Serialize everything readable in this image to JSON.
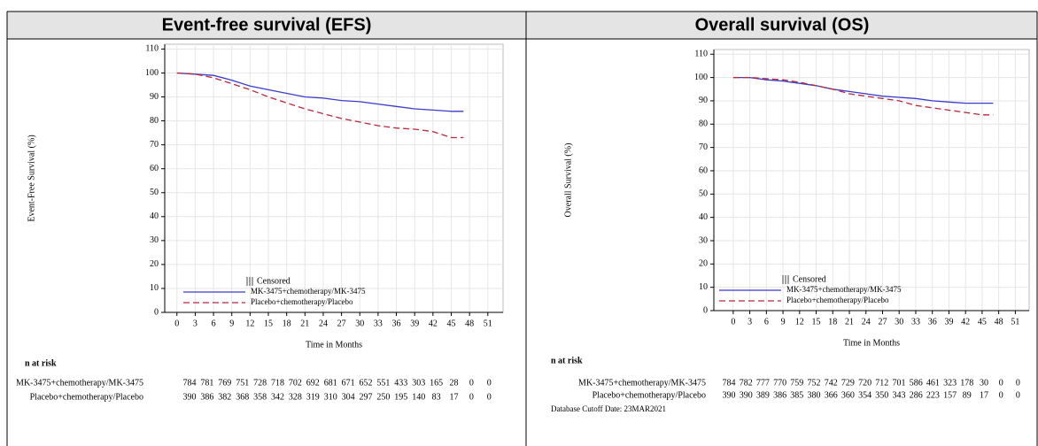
{
  "table": {
    "headers": [
      "Event-free survival (EFS)",
      "Overall survival (OS)"
    ]
  },
  "chart_data": [
    {
      "type": "line",
      "y_label": "Event-Free Survival (%)",
      "x_label": "Time in Months",
      "x": [
        0,
        3,
        6,
        9,
        12,
        15,
        18,
        21,
        24,
        27,
        30,
        33,
        36,
        39,
        42,
        45,
        47
      ],
      "series": [
        {
          "name": "MK-3475+chemotherapy/MK-3475",
          "color": "#3a3acc",
          "line_style": "solid",
          "values": [
            100,
            99.5,
            99,
            97,
            94.5,
            93,
            91.5,
            90,
            89.5,
            88.5,
            88,
            87,
            86,
            85,
            84.5,
            84,
            84
          ]
        },
        {
          "name": "Placebo+chemotherapy/Placebo",
          "color": "#b8283a",
          "line_style": "dashed",
          "values": [
            100,
            99.5,
            98,
            95.5,
            93,
            90,
            87.5,
            85,
            83,
            81,
            79.5,
            78,
            77,
            76.5,
            75.5,
            73,
            73
          ]
        }
      ],
      "censored_label": "Censored",
      "xlim": [
        -2,
        53.5
      ],
      "xticks": [
        0,
        3,
        6,
        9,
        12,
        15,
        18,
        21,
        24,
        27,
        30,
        33,
        36,
        39,
        42,
        45,
        48,
        51
      ],
      "ylim": [
        0,
        112
      ],
      "yticks": [
        0,
        10,
        20,
        30,
        40,
        50,
        60,
        70,
        80,
        90,
        100,
        110
      ],
      "grid": true,
      "n_at_risk": {
        "title": "n at risk",
        "rows": [
          {
            "label": "MK-3475+chemotherapy/MK-3475",
            "values": [
              784,
              781,
              769,
              751,
              728,
              718,
              702,
              692,
              681,
              671,
              652,
              551,
              433,
              303,
              165,
              28,
              0,
              0
            ]
          },
          {
            "label": "Placebo+chemotherapy/Placebo",
            "values": [
              390,
              386,
              382,
              368,
              358,
              342,
              328,
              319,
              310,
              304,
              297,
              250,
              195,
              140,
              83,
              17,
              0,
              0
            ]
          }
        ]
      }
    },
    {
      "type": "line",
      "y_label": "Overall Survival (%)",
      "x_label": "Time in Months",
      "x": [
        0,
        3,
        6,
        9,
        12,
        15,
        18,
        21,
        24,
        27,
        30,
        33,
        36,
        39,
        42,
        45,
        47
      ],
      "series": [
        {
          "name": "MK-3475+chemotherapy/MK-3475",
          "color": "#3a3acc",
          "line_style": "solid",
          "values": [
            100,
            100,
            99,
            98.5,
            97.5,
            96.5,
            95,
            94,
            93,
            92,
            91.5,
            91,
            90,
            89.5,
            89,
            89,
            89
          ]
        },
        {
          "name": "Placebo+chemotherapy/Placebo",
          "color": "#b8283a",
          "line_style": "dashed",
          "values": [
            100,
            100,
            99.5,
            99,
            98,
            96.5,
            95,
            93,
            92,
            91,
            90,
            88,
            87,
            86,
            85,
            84,
            84
          ]
        }
      ],
      "censored_label": "Censored",
      "xlim": [
        -3.5,
        53.5
      ],
      "xticks": [
        0,
        3,
        6,
        9,
        12,
        15,
        18,
        21,
        24,
        27,
        30,
        33,
        36,
        39,
        42,
        45,
        48,
        51
      ],
      "ylim": [
        0,
        112
      ],
      "yticks": [
        0,
        10,
        20,
        30,
        40,
        50,
        60,
        70,
        80,
        90,
        100,
        110
      ],
      "grid": true,
      "n_at_risk": {
        "title": "n at risk",
        "rows": [
          {
            "label": "MK-3475+chemotherapy/MK-3475",
            "values": [
              784,
              782,
              777,
              770,
              759,
              752,
              742,
              729,
              720,
              712,
              701,
              586,
              461,
              323,
              178,
              30,
              0,
              0
            ]
          },
          {
            "label": "Placebo+chemotherapy/Placebo",
            "values": [
              390,
              390,
              389,
              386,
              385,
              380,
              366,
              360,
              354,
              350,
              343,
              286,
              223,
              157,
              89,
              17,
              0,
              0
            ]
          }
        ]
      },
      "footnote": "Database Cutoff Date: 23MAR2021"
    }
  ]
}
